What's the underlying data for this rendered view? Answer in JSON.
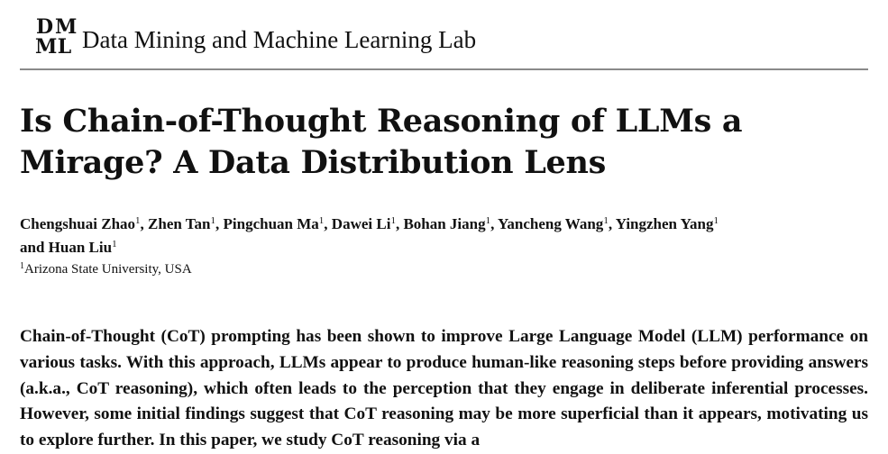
{
  "header": {
    "logo_letters": [
      "D",
      "M",
      "M",
      "L"
    ],
    "lab_name": "Data Mining and Machine Learning Lab"
  },
  "paper": {
    "title": "Is Chain-of-Thought Reasoning of LLMs a Mirage? A Data Distribution Lens",
    "authors": [
      {
        "name": "Chengshuai Zhao",
        "affil": "1"
      },
      {
        "name": "Zhen Tan",
        "affil": "1"
      },
      {
        "name": "Pingchuan Ma",
        "affil": "1"
      },
      {
        "name": "Dawei Li",
        "affil": "1"
      },
      {
        "name": "Bohan Jiang",
        "affil": "1"
      },
      {
        "name": "Yancheng Wang",
        "affil": "1"
      },
      {
        "name": "Yingzhen Yang",
        "affil": "1"
      },
      {
        "name": "Huan Liu",
        "affil": "1"
      }
    ],
    "affiliation": {
      "mark": "1",
      "text": "Arizona State University, USA"
    },
    "abstract": "Chain-of-Thought (CoT) prompting has been shown to improve Large Language Model (LLM) performance on various tasks. With this approach, LLMs appear to produce human-like reasoning steps before providing answers (a.k.a., CoT reasoning), which often leads to the perception that they engage in deliberate inferential processes. However, some initial findings suggest that CoT reasoning may be more superficial than it appears, motivating us to explore further. In this paper, we study CoT reasoning via a"
  }
}
